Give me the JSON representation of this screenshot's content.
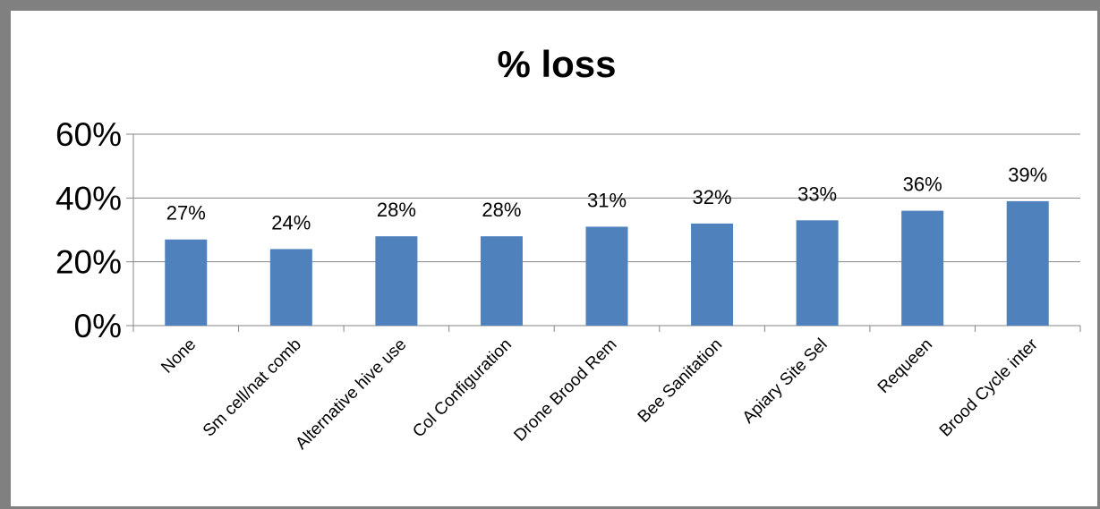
{
  "chart_data": {
    "type": "bar",
    "title": "% loss",
    "xlabel": "",
    "ylabel": "",
    "categories": [
      "None",
      "Sm cell/nat comb",
      "Alternative hive use",
      "Col Configuration",
      "Drone Brood Rem",
      "Bee Sanitation",
      "Apiary Site Sel",
      "Requeen",
      "Brood Cycle inter"
    ],
    "values": [
      0.27,
      0.24,
      0.28,
      0.28,
      0.31,
      0.32,
      0.33,
      0.36,
      0.39
    ],
    "data_labels": [
      "27%",
      "24%",
      "28%",
      "28%",
      "31%",
      "32%",
      "33%",
      "36%",
      "39%"
    ],
    "ylim": [
      0,
      0.6
    ],
    "yticks": [
      0,
      0.2,
      0.4,
      0.6
    ],
    "ytick_labels": [
      "0%",
      "20%",
      "40%",
      "60%"
    ],
    "grid": true,
    "legend": "none",
    "bar_color": "#4F81BD",
    "grid_color": "#868686"
  }
}
